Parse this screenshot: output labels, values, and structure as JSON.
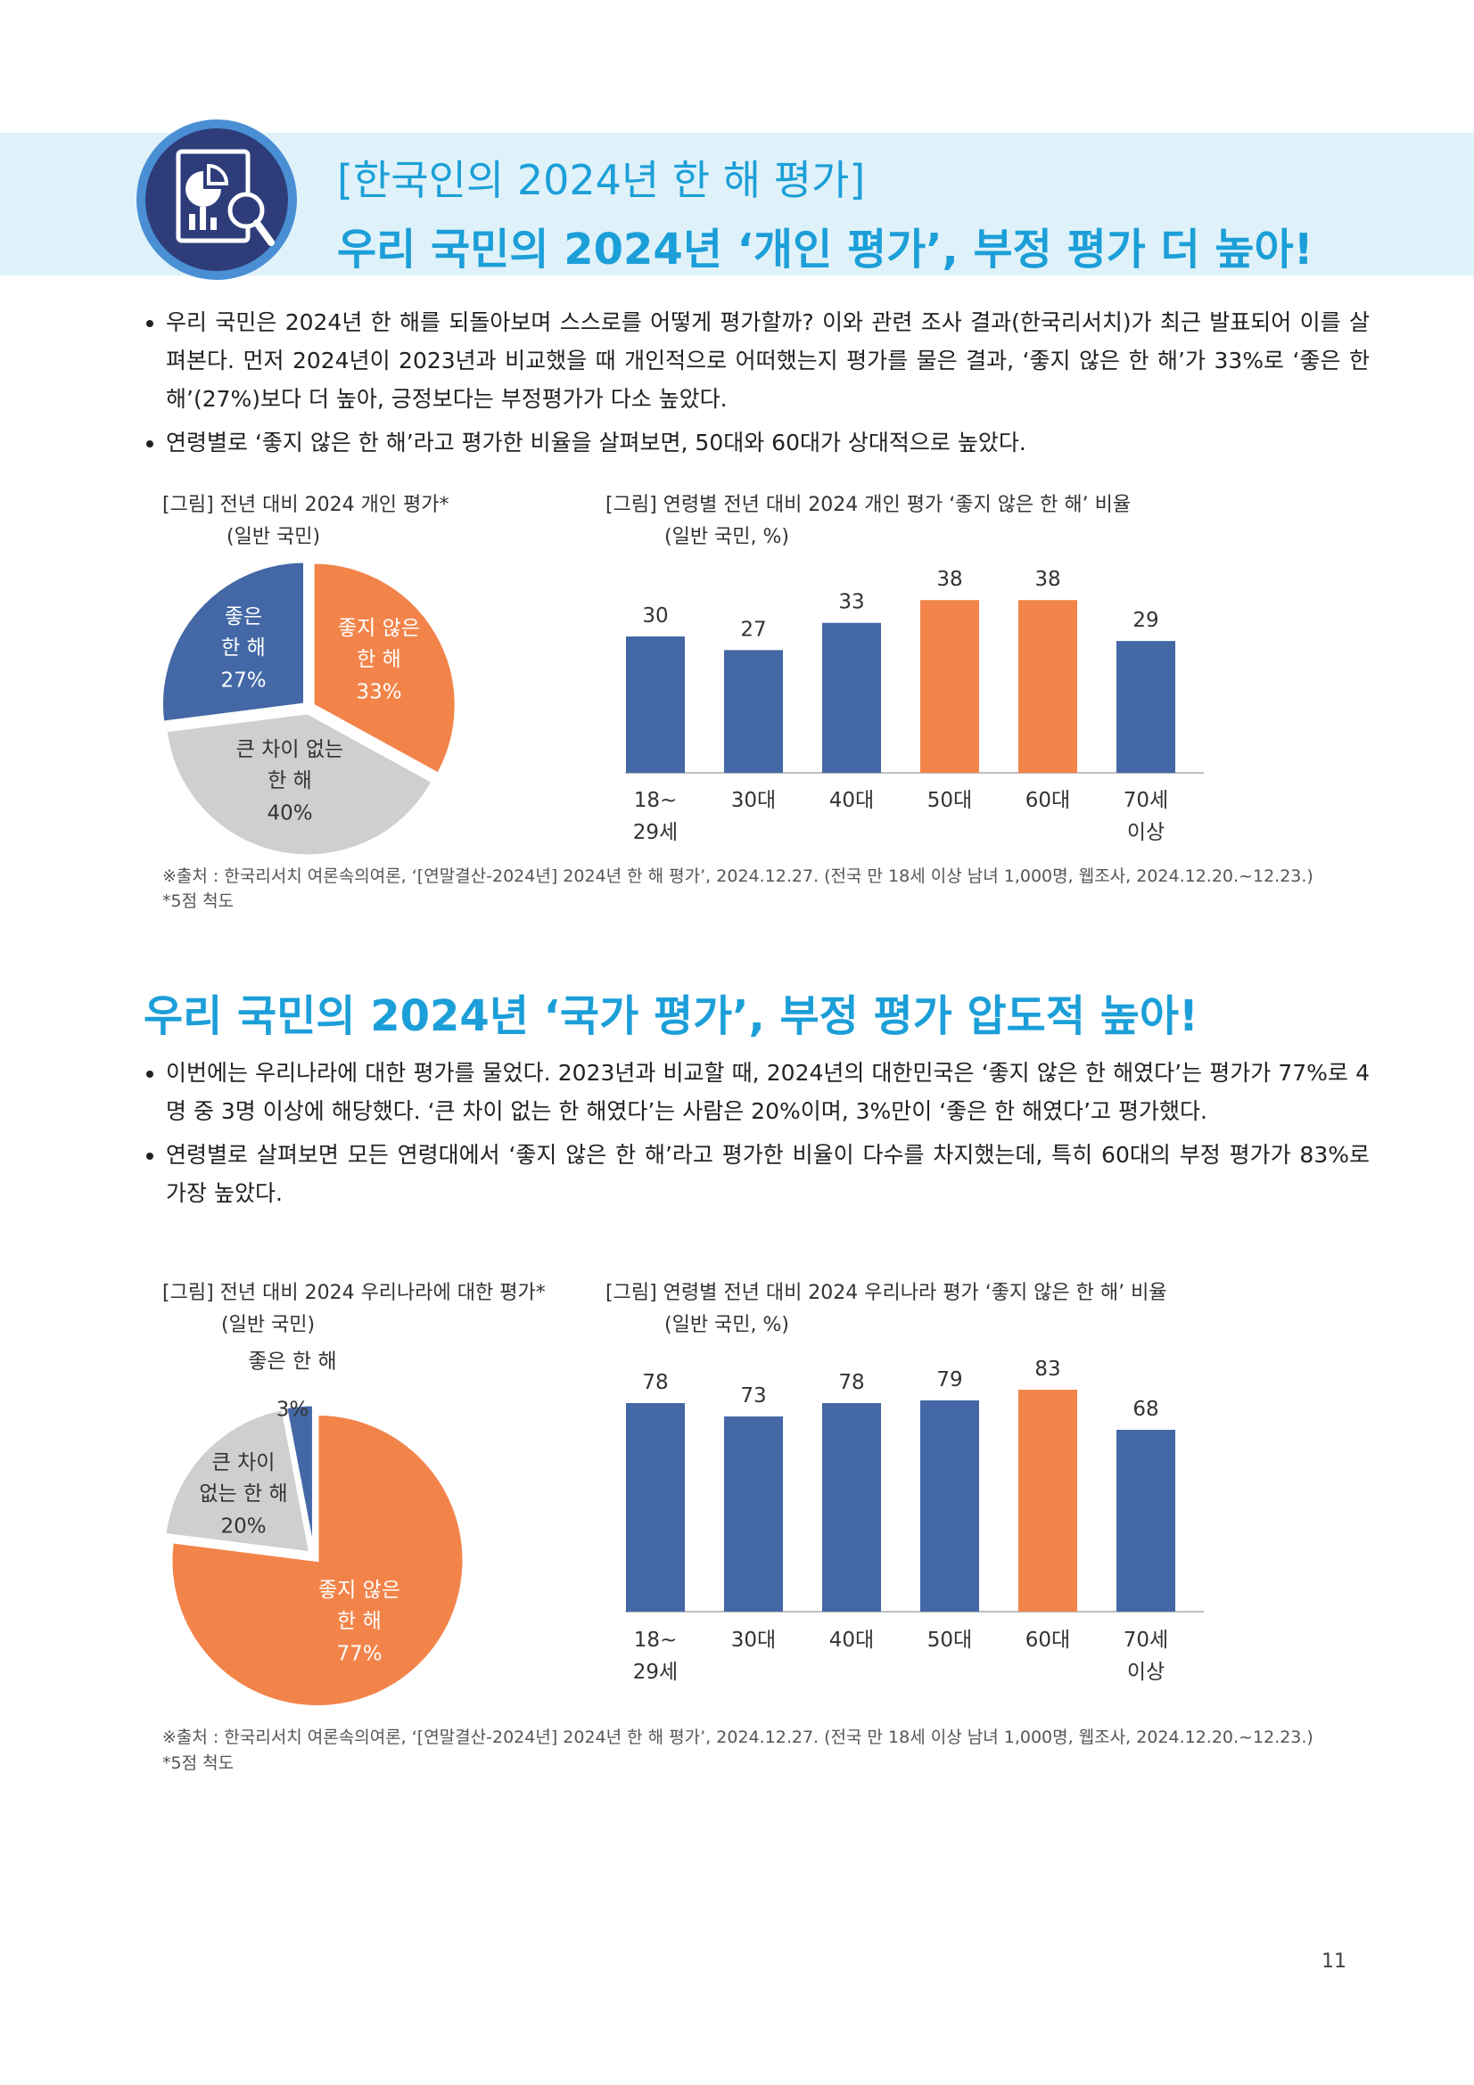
{
  "header": {
    "title": "[한국인의 2024년 한 해 평가]",
    "headline": "우리 국민의 2024년 ‘개인 평가’, 부정 평가 더 높아!"
  },
  "sections": [
    {
      "bullets": [
        "우리 국민은 2024년 한 해를 되돌아보며 스스로를 어떻게 평가할까? 이와 관련 조사 결과(한국리서치)가 최근 발표되어 이를 살펴본다. 먼저 2024년이 2023년과 비교했을 때 개인적으로 어떠했는지 평가를 물은 결과, ‘좋지 않은 한 해’가 33%로 ‘좋은 한 해’(27%)보다 더 높아, 긍정보다는 부정평가가 다소 높았다.",
        "연령별로 ‘좋지 않은 한 해’라고 평가한 비율을 살펴보면, 50대와 60대가 상대적으로 높았다."
      ],
      "source": "※출처 : 한국리서치 여론속의여론, ‘[연말결산-2024년] 2024년 한 해 평가’, 2024.12.27. (전국 만 18세 이상 남녀 1,000명, 웹조사, 2024.12.20.~12.23.)",
      "note": "*5점 척도"
    },
    {
      "heading": "우리 국민의 2024년 ‘국가 평가’, 부정 평가 압도적 높아!",
      "bullets": [
        "이번에는 우리나라에 대한 평가를 물었다. 2023년과 비교할 때, 2024년의 대한민국은 ‘좋지 않은 한 해였다’는 평가가 77%로 4명 중 3명 이상에 해당했다. ‘큰 차이 없는 한 해였다’는 사람은 20%이며, 3%만이 ‘좋은 한 해였다’고 평가했다.",
        "연령별로 살펴보면 모든 연령대에서 ‘좋지 않은 한 해’라고 평가한 비율이 다수를 차지했는데, 특히 60대의 부정 평가가 83%로 가장 높았다."
      ],
      "source": "※출처 : 한국리서치 여론속의여론, ‘[연말결산-2024년] 2024년 한 해 평가’, 2024.12.27. (전국 만 18세 이상 남녀 1,000명, 웹조사, 2024.12.20.~12.23.)",
      "note": "*5점 척도"
    }
  ],
  "chart_data": [
    {
      "type": "pie",
      "title": "[그림] 전년 대비 2024 개인 평가*",
      "subtitle": "(일반 국민)",
      "categories": [
        "좋지 않은\n한 해",
        "큰 차이 없는\n한 해",
        "좋은\n한 해"
      ],
      "values": [
        33,
        40,
        27
      ],
      "value_labels": [
        "33%",
        "40%",
        "27%"
      ],
      "colors": [
        "#f2844a",
        "#d0cfcf",
        "#4468a6"
      ]
    },
    {
      "type": "bar",
      "title": "[그림] 연령별 전년 대비 2024 개인 평가 ‘좋지 않은 한 해’ 비율",
      "subtitle": "(일반 국민, %)",
      "categories": [
        "18~\n29세",
        "30대",
        "40대",
        "50대",
        "60대",
        "70세\n이상"
      ],
      "values": [
        30,
        27,
        33,
        38,
        38,
        29
      ],
      "colors": [
        "#4468a6",
        "#4468a6",
        "#4468a6",
        "#f2844a",
        "#f2844a",
        "#4468a6"
      ]
    },
    {
      "type": "pie",
      "title": "[그림] 전년 대비 2024 우리나라에 대한 평가*",
      "subtitle": "(일반 국민)",
      "categories": [
        "좋지 않은\n한 해",
        "큰 차이\n없는 한 해",
        "좋은 한 해"
      ],
      "values": [
        77,
        20,
        3
      ],
      "value_labels": [
        "77%",
        "20%",
        "3%"
      ],
      "colors": [
        "#f2844a",
        "#d0cfcf",
        "#4468a6"
      ]
    },
    {
      "type": "bar",
      "title": "[그림] 연령별 전년 대비 2024 우리나라 평가 ‘좋지 않은 한 해’ 비율",
      "subtitle": "(일반 국민, %)",
      "categories": [
        "18~\n29세",
        "30대",
        "40대",
        "50대",
        "60대",
        "70세\n이상"
      ],
      "values": [
        78,
        73,
        78,
        79,
        83,
        68
      ],
      "colors": [
        "#4468a6",
        "#4468a6",
        "#4468a6",
        "#4468a6",
        "#f2844a",
        "#4468a6"
      ]
    }
  ],
  "page_number": "11"
}
